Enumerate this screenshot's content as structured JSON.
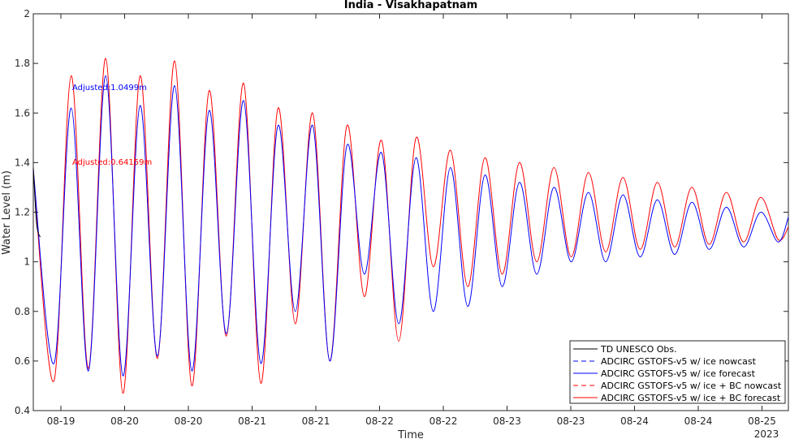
{
  "chart_data": {
    "type": "line",
    "title": "India - Visakhapatnam",
    "xlabel": "Time",
    "ylabel": "Water Level (m)",
    "ylim": [
      0.4,
      2
    ],
    "yticks": [
      "0.4",
      "0.6",
      "0.8",
      "1",
      "1.2",
      "1.4",
      "1.6",
      "1.8",
      "2"
    ],
    "xticks": [
      "08-19",
      "08-20",
      "08-20",
      "08-21",
      "08-21",
      "08-22",
      "08-22",
      "08-23",
      "08-23",
      "08-24",
      "08-24",
      "08-25"
    ],
    "xtick_year": "2023",
    "grid": false,
    "legend_position": "bottom-right",
    "annotations": [
      {
        "text": "Adjusted:1.0499m",
        "color": "#0000ff"
      },
      {
        "text": "Adjusted:0.64159m",
        "color": "#ff0000"
      }
    ],
    "series": [
      {
        "name": "TD UNESCO Obs.",
        "color": "#000000",
        "style": "solid",
        "x": [
          0.0,
          0.05,
          0.1
        ],
        "y": [
          1.38,
          1.15,
          1.1
        ]
      },
      {
        "name": "ADCIRC GSTOFS-v5 w/ ice nowcast",
        "color": "#0000ff",
        "style": "dashed",
        "x": [],
        "y": []
      },
      {
        "name": "ADCIRC GSTOFS-v5 w/ ice forecast",
        "color": "#0000ff",
        "style": "solid",
        "x": [
          0.0,
          0.3,
          0.55,
          0.8,
          1.05,
          1.3,
          1.55,
          1.8,
          2.05,
          2.3,
          2.55,
          2.8,
          3.05,
          3.3,
          3.55,
          3.8,
          4.05,
          4.3,
          4.55,
          4.8,
          5.05,
          5.3,
          5.55,
          5.8,
          6.05,
          6.3,
          6.55,
          6.8,
          7.05,
          7.3,
          7.55,
          7.8,
          8.05,
          8.3,
          8.55,
          8.8,
          9.05,
          9.3,
          9.55,
          9.8,
          10.05,
          10.3,
          10.55,
          10.8,
          10.95
        ],
        "y": [
          1.37,
          0.59,
          1.62,
          0.56,
          1.75,
          0.54,
          1.63,
          0.62,
          1.71,
          0.56,
          1.61,
          0.71,
          1.65,
          0.59,
          1.55,
          0.8,
          1.55,
          0.6,
          1.47,
          0.95,
          1.44,
          0.75,
          1.42,
          0.8,
          1.38,
          0.82,
          1.35,
          0.9,
          1.32,
          0.95,
          1.3,
          1.0,
          1.28,
          1.0,
          1.27,
          1.02,
          1.25,
          1.03,
          1.24,
          1.05,
          1.22,
          1.06,
          1.2,
          1.08,
          1.18
        ]
      },
      {
        "name": "ADCIRC GSTOFS-v5 w/ ice + BC nowcast",
        "color": "#ff0000",
        "style": "dashed",
        "x": [],
        "y": []
      },
      {
        "name": "ADCIRC GSTOFS-v5 w/ ice + BC forecast",
        "color": "#ff0000",
        "style": "solid",
        "x": [
          0.0,
          0.3,
          0.55,
          0.8,
          1.05,
          1.3,
          1.55,
          1.8,
          2.05,
          2.3,
          2.55,
          2.8,
          3.05,
          3.3,
          3.55,
          3.8,
          4.05,
          4.3,
          4.55,
          4.8,
          5.05,
          5.3,
          5.55,
          5.8,
          6.05,
          6.3,
          6.55,
          6.8,
          7.05,
          7.3,
          7.55,
          7.8,
          8.05,
          8.3,
          8.55,
          8.8,
          9.05,
          9.3,
          9.55,
          9.8,
          10.05,
          10.3,
          10.55,
          10.8,
          10.95
        ],
        "y": [
          1.37,
          0.52,
          1.75,
          0.57,
          1.82,
          0.47,
          1.75,
          0.61,
          1.81,
          0.5,
          1.69,
          0.7,
          1.72,
          0.51,
          1.62,
          0.75,
          1.6,
          0.6,
          1.55,
          0.86,
          1.49,
          0.68,
          1.5,
          0.98,
          1.45,
          0.9,
          1.42,
          0.95,
          1.4,
          1.0,
          1.38,
          1.02,
          1.36,
          1.04,
          1.34,
          1.05,
          1.32,
          1.06,
          1.3,
          1.07,
          1.28,
          1.08,
          1.26,
          1.09,
          1.14
        ]
      }
    ]
  }
}
